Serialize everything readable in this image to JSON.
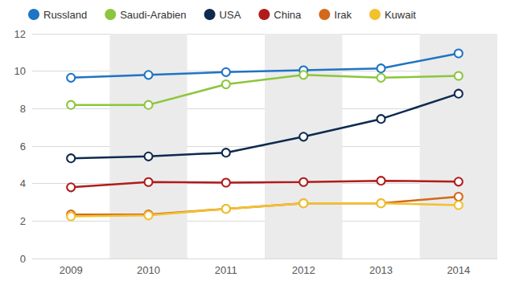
{
  "chart_data": {
    "type": "line",
    "categories": [
      "2009",
      "2010",
      "2011",
      "2012",
      "2013",
      "2014"
    ],
    "series": [
      {
        "name": "Russland",
        "color": "#1f74c4",
        "values": [
          9.65,
          9.8,
          9.95,
          10.05,
          10.15,
          10.95
        ]
      },
      {
        "name": "Saudi-Arabien",
        "color": "#8cc63e",
        "values": [
          8.2,
          8.2,
          9.3,
          9.8,
          9.65,
          9.75
        ]
      },
      {
        "name": "USA",
        "color": "#0e2a4f",
        "values": [
          5.35,
          5.45,
          5.65,
          6.5,
          7.45,
          8.8
        ]
      },
      {
        "name": "China",
        "color": "#b01c1c",
        "values": [
          3.8,
          4.08,
          4.05,
          4.08,
          4.15,
          4.1
        ]
      },
      {
        "name": "Irak",
        "color": "#d3691b",
        "values": [
          2.35,
          2.35,
          2.65,
          2.95,
          2.95,
          3.3
        ]
      },
      {
        "name": "Kuwait",
        "color": "#f2c12e",
        "values": [
          2.25,
          2.3,
          2.65,
          2.95,
          2.95,
          2.85
        ]
      }
    ],
    "ylim": [
      0,
      12
    ],
    "yticks": [
      0,
      2,
      4,
      6,
      8,
      10,
      12
    ],
    "grid": true,
    "legend": "top",
    "marker": "emptyCircle"
  }
}
